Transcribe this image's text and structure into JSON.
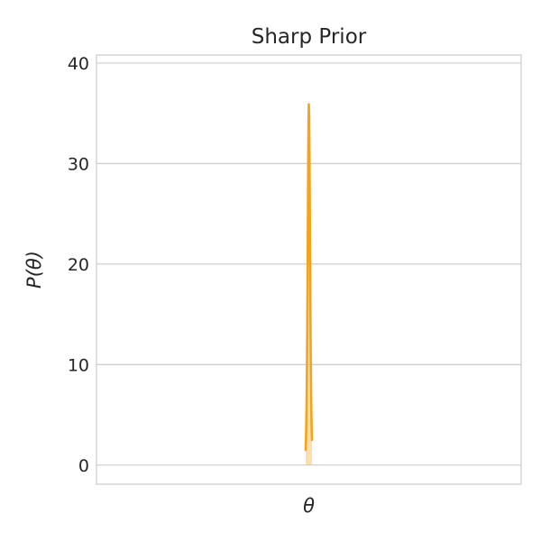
{
  "chart_data": {
    "type": "line",
    "title": "Sharp Prior",
    "xlabel": "θ",
    "ylabel": "P(θ)",
    "ylim": [
      -1.9,
      40.8
    ],
    "xlim": [
      -1.0,
      1.0
    ],
    "yticks": [
      0,
      10,
      20,
      30,
      40
    ],
    "ytick_labels": [
      "0",
      "10",
      "20",
      "30",
      "40"
    ],
    "xticks_shown": false,
    "grid": true,
    "colors": {
      "line": "#f5a31a",
      "fill": "#f8c56a",
      "grid": "#cccccc",
      "spine": "#cccccc",
      "text": "#262626"
    },
    "series": [
      {
        "x": [
          -0.015,
          -0.0135,
          -0.012,
          -0.0105,
          -0.009,
          -0.0075,
          -0.006,
          -0.0045,
          -0.003,
          -0.0015,
          0.0,
          0.0015,
          0.003,
          0.0045,
          0.006,
          0.0075,
          0.009,
          0.0105,
          0.012,
          0.0135,
          0.015
        ],
        "y": [
          1.5,
          2.5,
          4.0,
          6.1,
          9.1,
          13.1,
          18.1,
          23.8,
          29.4,
          33.9,
          35.9,
          34.8,
          31.3,
          26.2,
          20.4,
          15.3,
          10.9,
          7.5,
          5.1,
          3.5,
          2.5
        ]
      }
    ]
  }
}
